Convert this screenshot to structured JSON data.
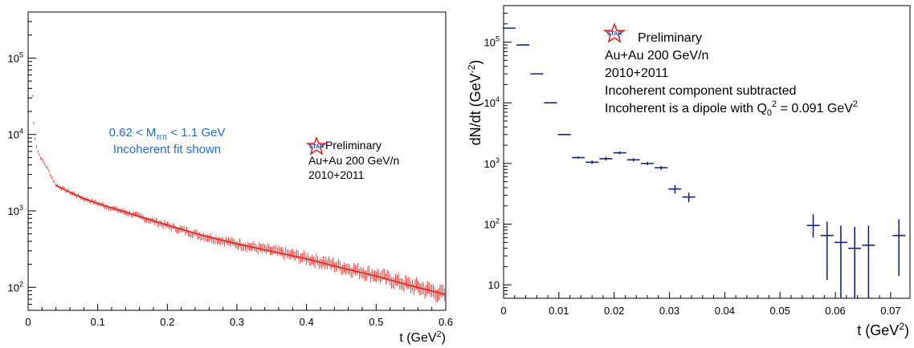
{
  "colors": {
    "left_series": "#e3211c",
    "right_series": "#1a237e",
    "left_annotation": "#1f6fd6",
    "axis": "#000000",
    "star_red": "#e3211c",
    "star_blue": "#1f3fbf"
  },
  "chart_data": [
    {
      "type": "scatter",
      "log_y": true,
      "xlim": [
        0,
        0.6
      ],
      "ylim": [
        50,
        400000
      ],
      "xlabel": "t (GeV",
      "xlabel_sup": "2",
      "xlabel_close": ")",
      "ylabel": "",
      "x_ticks": [
        "0",
        "0.1",
        "0.2",
        "0.3",
        "0.4",
        "0.5",
        "0.6"
      ],
      "x_tick_values": [
        0,
        0.1,
        0.2,
        0.3,
        0.4,
        0.5,
        0.6
      ],
      "y_ticks": [
        {
          "value": 100,
          "base": "10",
          "exp": "2"
        },
        {
          "value": 1000,
          "base": "10",
          "exp": "3"
        },
        {
          "value": 10000,
          "base": "10",
          "exp": "4"
        },
        {
          "value": 100000,
          "base": "10",
          "exp": "5"
        }
      ],
      "grid": false,
      "annotation": {
        "mass_range_prefix": "0.62 < M",
        "mass_range_subscript": "ππ",
        "mass_range_suffix": " < 1.1 GeV",
        "fit_note": "Incoherent fit shown"
      },
      "star_box": {
        "logo": "STAR",
        "status": "Preliminary",
        "system": "Au+Au 200 GeV/n",
        "years": "2010+2011"
      },
      "series": [
        {
          "kind": "points",
          "x": [
            0.006,
            0.008,
            0.01,
            0.012,
            0.014,
            0.016,
            0.018,
            0.02,
            0.025,
            0.03,
            0.035,
            0.04,
            0.05,
            0.06,
            0.08,
            0.1,
            0.12,
            0.15,
            0.18,
            0.2,
            0.25,
            0.3,
            0.35,
            0.4,
            0.45,
            0.5,
            0.55,
            0.6
          ],
          "y": [
            32000,
            14000,
            9000,
            7000,
            6000,
            5500,
            5000,
            4600,
            4000,
            3300,
            2600,
            2200,
            1950,
            1750,
            1450,
            1250,
            1080,
            900,
            730,
            640,
            470,
            370,
            300,
            240,
            185,
            145,
            105,
            80
          ]
        },
        {
          "kind": "fit",
          "x": [
            0.04,
            0.06,
            0.08,
            0.1,
            0.15,
            0.2,
            0.25,
            0.3,
            0.35,
            0.4,
            0.45,
            0.5,
            0.55,
            0.6
          ],
          "y": [
            2150,
            1750,
            1450,
            1250,
            900,
            650,
            480,
            370,
            295,
            235,
            180,
            140,
            105,
            80
          ]
        }
      ]
    },
    {
      "type": "scatter",
      "log_y": true,
      "xlim": [
        0,
        0.0735
      ],
      "ylim": [
        6,
        400000
      ],
      "xlabel": "t (GeV",
      "xlabel_sup": "2",
      "xlabel_close": ")",
      "ylabel": "dN/dt (GeV",
      "ylabel_sup": "-2",
      "ylabel_close": ")",
      "x_ticks": [
        "0",
        "0.01",
        "0.02",
        "0.03",
        "0.04",
        "0.05",
        "0.06",
        "0.07"
      ],
      "x_tick_values": [
        0,
        0.01,
        0.02,
        0.03,
        0.04,
        0.05,
        0.06,
        0.07
      ],
      "y_ticks": [
        {
          "value": 10,
          "base": "10",
          "exp": ""
        },
        {
          "value": 100,
          "base": "10",
          "exp": "2"
        },
        {
          "value": 1000,
          "base": "10",
          "exp": "3"
        },
        {
          "value": 10000,
          "base": "10",
          "exp": "4"
        },
        {
          "value": 100000,
          "base": "10",
          "exp": "5"
        }
      ],
      "grid": false,
      "star_box": {
        "logo": "STAR",
        "status": "Preliminary",
        "system": "Au+Au 200 GeV/n",
        "years": "2010+2011",
        "note": "Incoherent component subtracted",
        "dipole_prefix": "Incoherent is a dipole with Q",
        "dipole_sub": "0",
        "dipole_sup": "2",
        "dipole_suffix": " = 0.091 GeV",
        "dipole_unit_sup": "2"
      },
      "series": [
        {
          "kind": "points",
          "x": [
            0.001,
            0.0035,
            0.006,
            0.0085,
            0.011,
            0.0135,
            0.016,
            0.0185,
            0.021,
            0.0235,
            0.026,
            0.0285,
            0.031,
            0.0335,
            0.056,
            0.0585,
            0.061,
            0.0635,
            0.066,
            0.0715
          ],
          "y": [
            170000,
            90000,
            30000,
            10000,
            3000,
            1250,
            1050,
            1200,
            1500,
            1150,
            1000,
            850,
            380,
            280,
            95,
            65,
            50,
            40,
            45,
            65
          ],
          "y_low": [
            170000,
            90000,
            30000,
            10000,
            3000,
            1200,
            980,
            1120,
            1420,
            1080,
            940,
            790,
            320,
            230,
            60,
            12,
            5,
            5,
            5,
            14
          ],
          "y_high": [
            170000,
            90000,
            30000,
            10000,
            3000,
            1300,
            1120,
            1280,
            1580,
            1220,
            1060,
            910,
            440,
            330,
            145,
            110,
            95,
            90,
            95,
            120
          ]
        }
      ]
    }
  ]
}
